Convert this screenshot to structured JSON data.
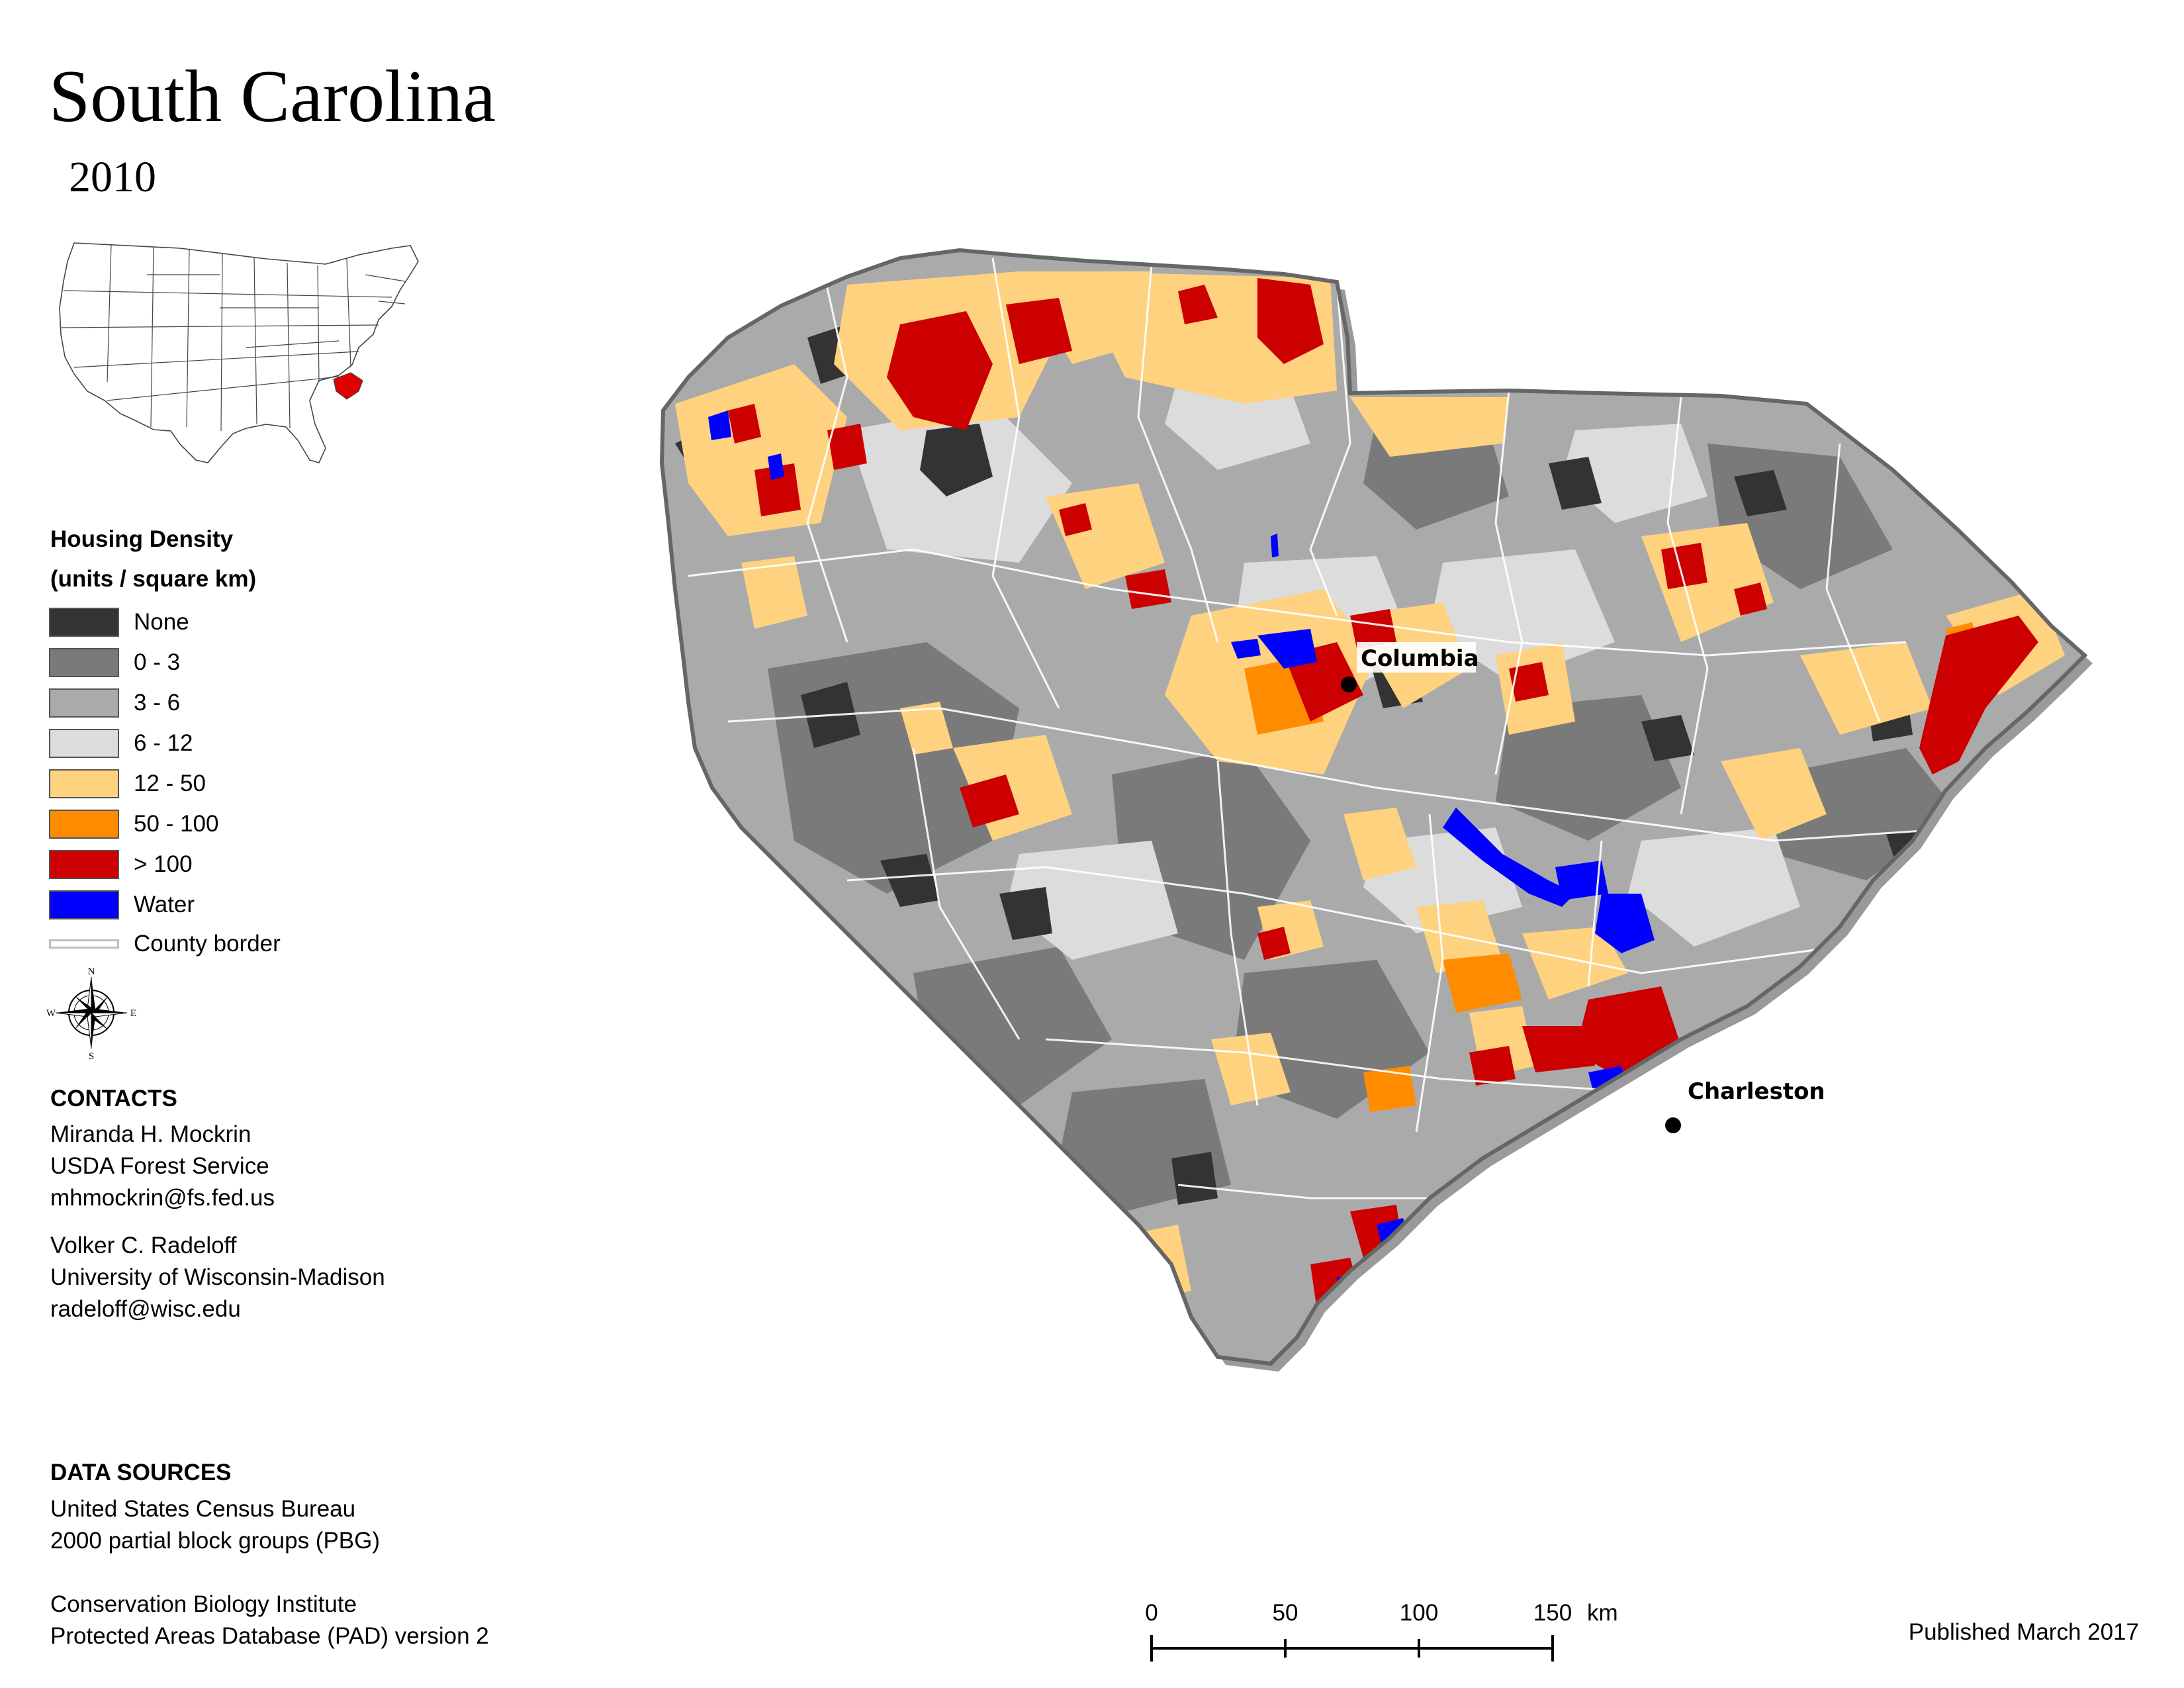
{
  "title": "South Carolina",
  "year": "2010",
  "legend": {
    "title_line1": "Housing Density",
    "title_line2": "(units / square km)",
    "items": [
      {
        "label": "None",
        "color": "#333333"
      },
      {
        "label": "0 - 3",
        "color": "#7a7a7a"
      },
      {
        "label": "3 - 6",
        "color": "#aaaaaa"
      },
      {
        "label": "6 - 12",
        "color": "#dcdcdc"
      },
      {
        "label": "12 - 50",
        "color": "#ffd27f"
      },
      {
        "label": "50 - 100",
        "color": "#ff8c00"
      },
      {
        "label": "> 100",
        "color": "#cc0000"
      },
      {
        "label": "Water",
        "color": "#0000ff"
      }
    ],
    "county_border_label": "County border"
  },
  "compass": {
    "n": "N",
    "s": "S",
    "e": "E",
    "w": "W"
  },
  "contacts": {
    "heading": "CONTACTS",
    "person1": {
      "name": "Miranda H. Mockrin",
      "org": "USDA Forest Service",
      "email": "mhmockrin@fs.fed.us"
    },
    "person2": {
      "name": "Volker C. Radeloff",
      "org": "University of Wisconsin-Madison",
      "email": "radeloff@wisc.edu"
    }
  },
  "data_sources": {
    "heading": "DATA SOURCES",
    "line1": "United States Census Bureau",
    "line2": "2000 partial block groups (PBG)",
    "line3": "Conservation Biology Institute",
    "line4": "Protected Areas Database (PAD) version 2"
  },
  "cities": {
    "columbia": "Columbia",
    "charleston": "Charleston"
  },
  "scale_bar": {
    "ticks": [
      "0",
      "50",
      "100",
      "150"
    ],
    "unit": "km"
  },
  "published": "Published March 2017",
  "inset": {
    "highlight_color": "#e00000"
  }
}
